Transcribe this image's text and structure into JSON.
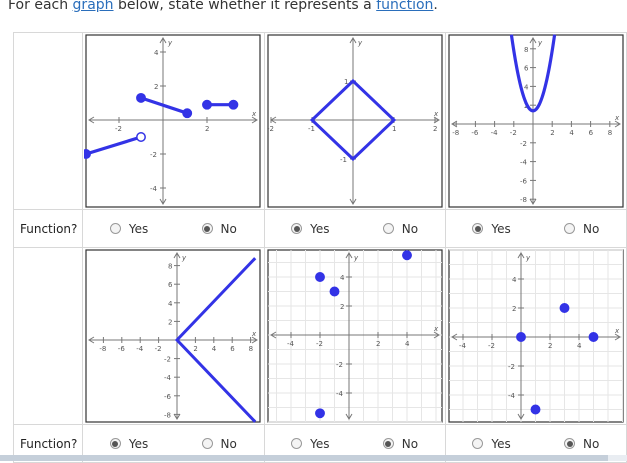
{
  "prompt": {
    "before": "For each ",
    "link1": "graph",
    "middle": " below, state whether it represents a ",
    "link2": "function",
    "after": "."
  },
  "row_label": "Function?",
  "yes_label": "Yes",
  "no_label": "No",
  "colors": {
    "curve": "#3333e6",
    "grid": "#e6e6e6",
    "axis": "#777777",
    "link": "#2a6ebb"
  },
  "graphs": [
    {
      "x_label": "x",
      "y_label": "y",
      "x_ticks": [
        "-2",
        "2"
      ],
      "y_ticks": [
        "4",
        "2",
        "-2",
        "-4"
      ],
      "answer": "No"
    },
    {
      "x_label": "x",
      "y_label": "y",
      "x_ticks": [
        "-2",
        "-1",
        "1",
        "2"
      ],
      "y_ticks": [
        "1",
        "-1"
      ],
      "answer": "Yes"
    },
    {
      "x_label": "x",
      "y_label": "y",
      "x_ticks": [
        "-8",
        "-6",
        "-4",
        "-2",
        "2",
        "4",
        "6",
        "8"
      ],
      "y_ticks": [
        "8",
        "6",
        "4",
        "2",
        "-2",
        "-4",
        "-6",
        "-8"
      ],
      "answer": "Yes"
    },
    {
      "x_label": "x",
      "y_label": "y",
      "x_ticks": [
        "-8",
        "-6",
        "-4",
        "-2",
        "2",
        "4",
        "6",
        "8"
      ],
      "y_ticks": [
        "8",
        "6",
        "4",
        "2",
        "-2",
        "-4",
        "-6",
        "-8"
      ],
      "answer": "Yes"
    },
    {
      "x_label": "x",
      "y_label": "y",
      "x_ticks": [
        "-4",
        "-2",
        "2",
        "4"
      ],
      "y_ticks": [
        "4",
        "2",
        "-2",
        "-4"
      ],
      "answer": "No"
    },
    {
      "x_label": "x",
      "y_label": "y",
      "x_ticks": [
        "-4",
        "-2",
        "2",
        "4"
      ],
      "y_ticks": [
        "4",
        "2",
        "-2",
        "-4"
      ],
      "answer": "No"
    }
  ]
}
